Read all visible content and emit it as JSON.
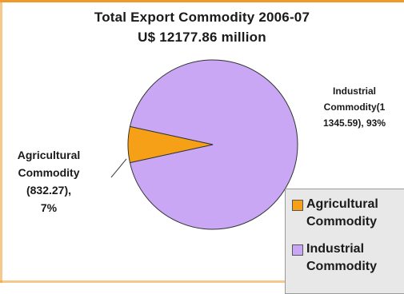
{
  "chart_data": {
    "type": "pie",
    "title": "Total Export Commodity 2006-07",
    "subtitle": "U$ 12177.86 million",
    "slices": [
      {
        "name": "Agricultural Commodity",
        "value": 832.27,
        "percent": 7,
        "color": "#f5a016",
        "label_lines": [
          "Agricultural",
          "Commodity",
          "(832.27),",
          "7%"
        ]
      },
      {
        "name": "Industrial Commodity",
        "value": 11345.59,
        "percent": 93,
        "color": "#c9a7f5",
        "label_lines": [
          "Industrial",
          "Commodity(1",
          "1345.59), 93%"
        ]
      }
    ],
    "legend": {
      "placement": "bottom-right",
      "items": [
        {
          "lines": [
            "Agricultural",
            "Commodity"
          ],
          "color": "#f5a016"
        },
        {
          "lines": [
            "Industrial",
            "Commodity"
          ],
          "color": "#c9a7f5"
        }
      ]
    }
  }
}
